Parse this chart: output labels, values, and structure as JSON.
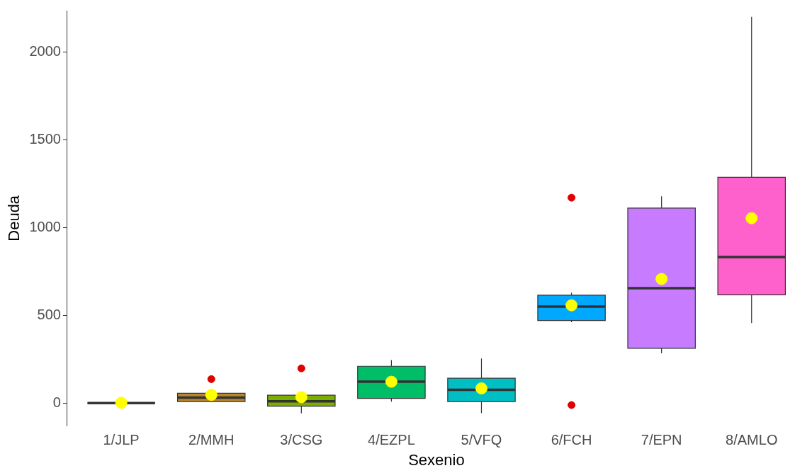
{
  "chart_data": {
    "type": "box",
    "xlabel": "Sexenio",
    "ylabel": "Deuda",
    "categories": [
      "1/JLP",
      "2/MMH",
      "3/CSG",
      "4/EZPL",
      "5/VFQ",
      "6/FCH",
      "7/EPN",
      "8/AMLO"
    ],
    "colors": [
      "#333333",
      "#b8862b",
      "#7cae00",
      "#00be67",
      "#00bfc4",
      "#00a9ff",
      "#c77cff",
      "#ff61cc"
    ],
    "boxes": [
      {
        "low": 0,
        "q1": 0,
        "median": 0,
        "q3": 0,
        "high": 0,
        "mean": 2
      },
      {
        "low": 9,
        "q1": 9,
        "median": 32,
        "q3": 56,
        "high": 56,
        "mean": 47,
        "outliers": [
          137
        ]
      },
      {
        "low": -58,
        "q1": -17,
        "median": 11,
        "q3": 45,
        "high": 45,
        "mean": 34,
        "outliers": [
          198
        ]
      },
      {
        "low": 8,
        "q1": 27,
        "median": 122,
        "q3": 210,
        "high": 245,
        "mean": 122
      },
      {
        "low": -57,
        "q1": 9,
        "median": 76,
        "q3": 142,
        "high": 254,
        "mean": 84
      },
      {
        "low": 461,
        "q1": 471,
        "median": 550,
        "q3": 615,
        "high": 629,
        "mean": 557,
        "outliers": [
          1170,
          -11
        ]
      },
      {
        "low": 284,
        "q1": 312,
        "median": 655,
        "q3": 1111,
        "high": 1178,
        "mean": 707
      },
      {
        "low": 456,
        "q1": 617,
        "median": 832,
        "q3": 1286,
        "high": 2200,
        "mean": 1053
      }
    ],
    "ylim": [
      -130,
      2235
    ],
    "yticks": [
      0,
      500,
      1000,
      1500,
      2000
    ],
    "grid": false,
    "legend": false
  }
}
